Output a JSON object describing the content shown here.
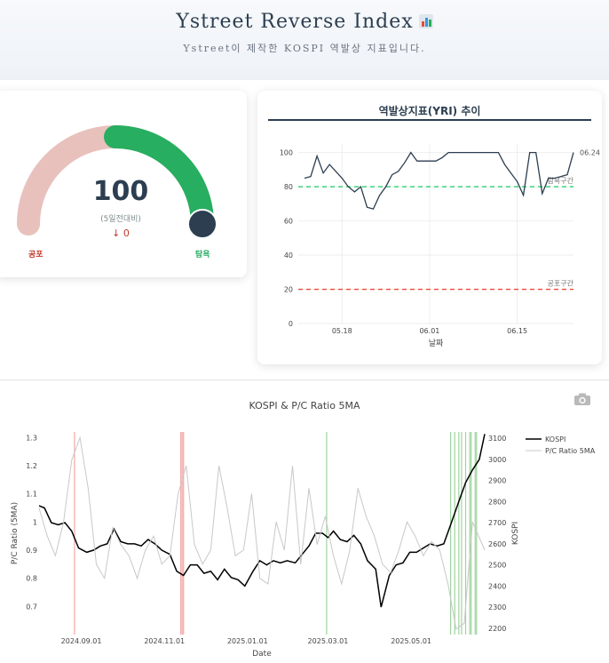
{
  "header": {
    "title": "Ystreet Reverse Index",
    "title_icon": "bar-chart-icon",
    "subtitle": "Ystreet이 제작한 KOSPI 역발상 지표입니다."
  },
  "gauge": {
    "value": "100",
    "value_fraction": 1.0,
    "subtitle": "(5일전대비)",
    "change": "↓ 0",
    "low_label": "공포",
    "high_label": "탐욕",
    "colors": {
      "track": "#e8c1bd",
      "fill": "#27ae60",
      "needle": "#2c3e50"
    }
  },
  "chart_data": [
    {
      "type": "line",
      "title": "역발상지표(YRI) 추이",
      "xlabel": "날짜",
      "ylabel": "",
      "x_ticks": [
        "05.18",
        "06.01",
        "06.15"
      ],
      "y_ticks": [
        0,
        20,
        40,
        60,
        80,
        100
      ],
      "ylim": [
        0,
        105
      ],
      "grid": true,
      "series": [
        {
          "color": "#2c3e50",
          "x": [
            "05.12",
            "05.13",
            "05.14",
            "05.15",
            "05.16",
            "05.17",
            "05.18",
            "05.19",
            "05.20",
            "05.21",
            "05.22",
            "05.23",
            "05.24",
            "05.25",
            "05.26",
            "05.27",
            "05.28",
            "05.29",
            "05.30",
            "05.31",
            "06.01",
            "06.02",
            "06.03",
            "06.04",
            "06.05",
            "06.06",
            "06.07",
            "06.08",
            "06.09",
            "06.10",
            "06.11",
            "06.12",
            "06.13",
            "06.14",
            "06.15",
            "06.16",
            "06.17",
            "06.18",
            "06.19",
            "06.20",
            "06.21",
            "06.22",
            "06.23",
            "06.24"
          ],
          "values": [
            85,
            86,
            98,
            88,
            93,
            89,
            85,
            80,
            77,
            80,
            68,
            67,
            75,
            80,
            87,
            89,
            94,
            100,
            95,
            95,
            95,
            95,
            97,
            100,
            100,
            100,
            100,
            100,
            100,
            100,
            100,
            100,
            93,
            88,
            83,
            75,
            100,
            100,
            76,
            85,
            85,
            86,
            87,
            100
          ]
        }
      ],
      "hlines": [
        {
          "y": 80,
          "label": "탐욕구간",
          "color": "#2ecc71"
        },
        {
          "y": 20,
          "label": "공포구간",
          "color": "#e74c3c"
        }
      ],
      "annotations": [
        {
          "text": "06.24"
        }
      ]
    },
    {
      "type": "line",
      "title": "KOSPI & P/C Ratio 5MA",
      "xlabel": "Date",
      "ylabel": "P/C Ratio (5MA)",
      "y2label": "KOSPI",
      "x_ticks": [
        "2024.09.01",
        "2024.11.01",
        "2025.01.01",
        "2025.03.01",
        "2025.05.01"
      ],
      "y_ticks": [
        0.7,
        0.8,
        0.9,
        1,
        1.1,
        1.2,
        1.3
      ],
      "y2_ticks": [
        2200,
        2300,
        2400,
        2500,
        2600,
        2700,
        2800,
        2900,
        3000,
        3100
      ],
      "ylim": [
        0.6,
        1.32
      ],
      "y2lim": [
        2170,
        3130
      ],
      "xrange": [
        "2024-08-01",
        "2025-06-24"
      ],
      "legend": "top-right",
      "series": [
        {
          "name": "KOSPI",
          "color": "#000000",
          "axis": "y2",
          "x": [
            "2024-08-01",
            "2024-08-05",
            "2024-08-10",
            "2024-08-15",
            "2024-08-20",
            "2024-08-25",
            "2024-08-30",
            "2024-09-05",
            "2024-09-10",
            "2024-09-15",
            "2024-09-20",
            "2024-09-25",
            "2024-09-30",
            "2024-10-05",
            "2024-10-10",
            "2024-10-15",
            "2024-10-20",
            "2024-10-25",
            "2024-10-30",
            "2024-11-05",
            "2024-11-10",
            "2024-11-15",
            "2024-11-20",
            "2024-11-25",
            "2024-11-30",
            "2024-12-05",
            "2024-12-10",
            "2024-12-15",
            "2024-12-20",
            "2024-12-25",
            "2024-12-30",
            "2025-01-05",
            "2025-01-10",
            "2025-01-15",
            "2025-01-20",
            "2025-01-25",
            "2025-01-30",
            "2025-02-05",
            "2025-02-10",
            "2025-02-15",
            "2025-02-20",
            "2025-02-25",
            "2025-03-01",
            "2025-03-05",
            "2025-03-10",
            "2025-03-15",
            "2025-03-20",
            "2025-03-25",
            "2025-03-30",
            "2025-04-05",
            "2025-04-09",
            "2025-04-15",
            "2025-04-20",
            "2025-04-25",
            "2025-04-30",
            "2025-05-05",
            "2025-05-10",
            "2025-05-15",
            "2025-05-20",
            "2025-05-25",
            "2025-05-30",
            "2025-06-05",
            "2025-06-10",
            "2025-06-15",
            "2025-06-20",
            "2025-06-24"
          ],
          "values": [
            2780,
            2770,
            2700,
            2690,
            2700,
            2660,
            2580,
            2560,
            2570,
            2590,
            2600,
            2670,
            2610,
            2600,
            2600,
            2590,
            2620,
            2600,
            2570,
            2550,
            2470,
            2450,
            2500,
            2500,
            2460,
            2470,
            2430,
            2480,
            2440,
            2430,
            2400,
            2470,
            2520,
            2500,
            2520,
            2510,
            2520,
            2510,
            2550,
            2590,
            2650,
            2650,
            2630,
            2660,
            2620,
            2610,
            2640,
            2600,
            2520,
            2480,
            2300,
            2450,
            2500,
            2510,
            2560,
            2560,
            2580,
            2600,
            2590,
            2600,
            2690,
            2800,
            2890,
            2950,
            3000,
            3120
          ]
        },
        {
          "name": "P/C Ratio 5MA",
          "color": "#c8c8c8",
          "axis": "y",
          "x": [
            "2024-08-01",
            "2024-08-07",
            "2024-08-13",
            "2024-08-19",
            "2024-08-25",
            "2024-08-31",
            "2024-09-06",
            "2024-09-12",
            "2024-09-18",
            "2024-09-24",
            "2024-09-30",
            "2024-10-06",
            "2024-10-12",
            "2024-10-18",
            "2024-10-24",
            "2024-10-30",
            "2024-11-05",
            "2024-11-11",
            "2024-11-17",
            "2024-11-23",
            "2024-11-29",
            "2024-12-05",
            "2024-12-11",
            "2024-12-17",
            "2024-12-23",
            "2024-12-29",
            "2025-01-04",
            "2025-01-10",
            "2025-01-16",
            "2025-01-22",
            "2025-01-28",
            "2025-02-03",
            "2025-02-09",
            "2025-02-15",
            "2025-02-21",
            "2025-02-27",
            "2025-03-05",
            "2025-03-11",
            "2025-03-17",
            "2025-03-23",
            "2025-03-29",
            "2025-04-04",
            "2025-04-10",
            "2025-04-16",
            "2025-04-22",
            "2025-04-28",
            "2025-05-04",
            "2025-05-10",
            "2025-05-16",
            "2025-05-22",
            "2025-05-28",
            "2025-06-03",
            "2025-06-09",
            "2025-06-15",
            "2025-06-24"
          ],
          "values": [
            1.05,
            0.95,
            0.88,
            1.0,
            1.22,
            1.3,
            1.12,
            0.85,
            0.8,
            0.98,
            0.92,
            0.88,
            0.8,
            0.9,
            0.95,
            0.85,
            0.88,
            1.1,
            1.2,
            0.92,
            0.85,
            0.9,
            1.2,
            1.05,
            0.88,
            0.9,
            1.1,
            0.8,
            0.78,
            1.0,
            0.9,
            1.2,
            0.85,
            1.12,
            0.92,
            1.02,
            0.88,
            0.78,
            0.9,
            1.12,
            1.02,
            0.95,
            0.85,
            0.82,
            0.9,
            1.0,
            0.95,
            0.88,
            0.93,
            0.9,
            0.78,
            0.62,
            0.64,
            1.0,
            0.9
          ]
        }
      ],
      "vlines": {
        "red": {
          "color": "#f4a7a7",
          "dates": [
            "2024-08-27",
            "2024-11-13",
            "2024-11-14",
            "2024-11-15"
          ]
        },
        "green": {
          "color": "#9fd39f",
          "dates": [
            "2025-02-28",
            "2025-05-30",
            "2025-06-02",
            "2025-06-05",
            "2025-06-07",
            "2025-06-10",
            "2025-06-13",
            "2025-06-14",
            "2025-06-17",
            "2025-06-18"
          ]
        }
      },
      "legend_entries": [
        "KOSPI",
        "P/C Ratio 5MA"
      ]
    }
  ],
  "toolbar": {
    "camera_icon": "camera-icon"
  }
}
